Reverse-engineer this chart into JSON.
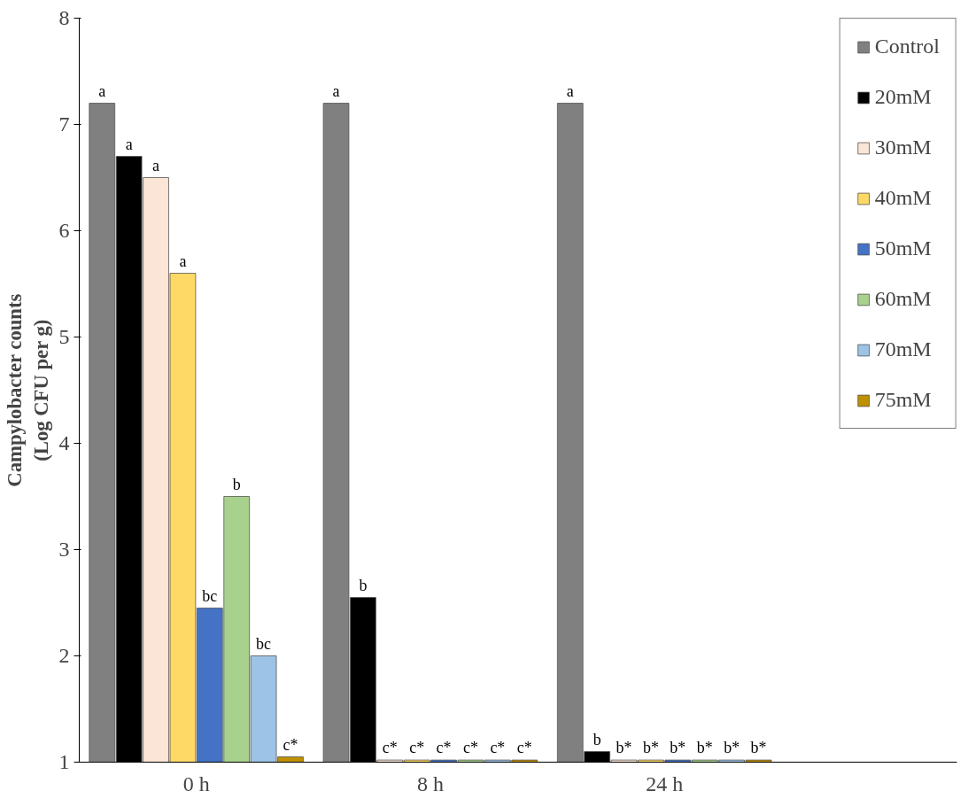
{
  "chart_data": {
    "type": "bar",
    "ylabel": "Campylobacter counts\n(Log CFU per g)",
    "categories": [
      "0 h",
      "8 h",
      "24 h"
    ],
    "ylim": [
      1,
      8
    ],
    "yticks": [
      1,
      2,
      3,
      4,
      5,
      6,
      7,
      8
    ],
    "grid": false,
    "legend": "right",
    "series": [
      {
        "name": "Control",
        "color": "#808080",
        "values": [
          7.2,
          7.2,
          7.2
        ],
        "value_labels": [
          "a",
          "a",
          "a"
        ]
      },
      {
        "name": "20mM",
        "color": "#000000",
        "values": [
          6.7,
          2.55,
          1.1
        ],
        "value_labels": [
          "a",
          "b",
          "b"
        ]
      },
      {
        "name": "30mM",
        "color": "#fbe5d6",
        "values": [
          6.5,
          1.02,
          1.02
        ],
        "value_labels": [
          "a",
          "c*",
          "b*"
        ]
      },
      {
        "name": "40mM",
        "color": "#ffd966",
        "values": [
          5.6,
          1.02,
          1.02
        ],
        "value_labels": [
          "a",
          "c*",
          "b*"
        ]
      },
      {
        "name": "50mM",
        "color": "#4472c4",
        "values": [
          2.45,
          1.02,
          1.02
        ],
        "value_labels": [
          "bc",
          "c*",
          "b*"
        ]
      },
      {
        "name": "60mM",
        "color": "#a9d18e",
        "values": [
          3.5,
          1.02,
          1.02
        ],
        "value_labels": [
          "b",
          "c*",
          "b*"
        ]
      },
      {
        "name": "70mM",
        "color": "#9dc3e6",
        "values": [
          2.0,
          1.02,
          1.02
        ],
        "value_labels": [
          "bc",
          "c*",
          "b*"
        ]
      },
      {
        "name": "75mM",
        "color": "#bf9000",
        "values": [
          1.05,
          1.02,
          1.02
        ],
        "value_labels": [
          "c*",
          "c*",
          "b*"
        ]
      }
    ]
  }
}
